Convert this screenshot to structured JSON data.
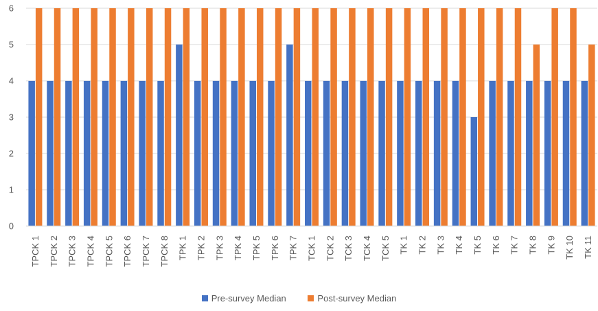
{
  "chart_data": {
    "type": "bar",
    "categories": [
      "TPCK 1",
      "TPCK 2",
      "TPCK 3",
      "TPCK 4",
      "TPCK 5",
      "TPCK 6",
      "TPCK 7",
      "TPCK 8",
      "TPK 1",
      "TPK 2",
      "TPK 3",
      "TPK 4",
      "TPK 5",
      "TPK 6",
      "TPK 7",
      "TCK 1",
      "TCK 2",
      "TCK 3",
      "TCK 4",
      "TCK 5",
      "TK 1",
      "TK 2",
      "TK 3",
      "TK 4",
      "TK 5",
      "TK 6",
      "TK 7",
      "TK 8",
      "TK 9",
      "TK 10",
      "TK 11"
    ],
    "series": [
      {
        "name": "Pre-survey Median",
        "color": "#4472C4",
        "values": [
          4,
          4,
          4,
          4,
          4,
          4,
          4,
          4,
          5,
          4,
          4,
          4,
          4,
          4,
          5,
          4,
          4,
          4,
          4,
          4,
          4,
          4,
          4,
          4,
          3,
          4,
          4,
          4,
          4,
          4,
          4
        ]
      },
      {
        "name": "Post-survey Median",
        "color": "#ED7D31",
        "values": [
          6,
          6,
          6,
          6,
          6,
          6,
          6,
          6,
          6,
          6,
          6,
          6,
          6,
          6,
          6,
          6,
          6,
          6,
          6,
          6,
          6,
          6,
          6,
          6,
          6,
          6,
          6,
          5,
          6,
          6,
          5
        ]
      }
    ],
    "title": "",
    "xlabel": "",
    "ylabel": "",
    "ylim": [
      0,
      6
    ],
    "yticks": [
      0,
      1,
      2,
      3,
      4,
      5,
      6
    ],
    "grid": true,
    "legend_position": "bottom"
  }
}
